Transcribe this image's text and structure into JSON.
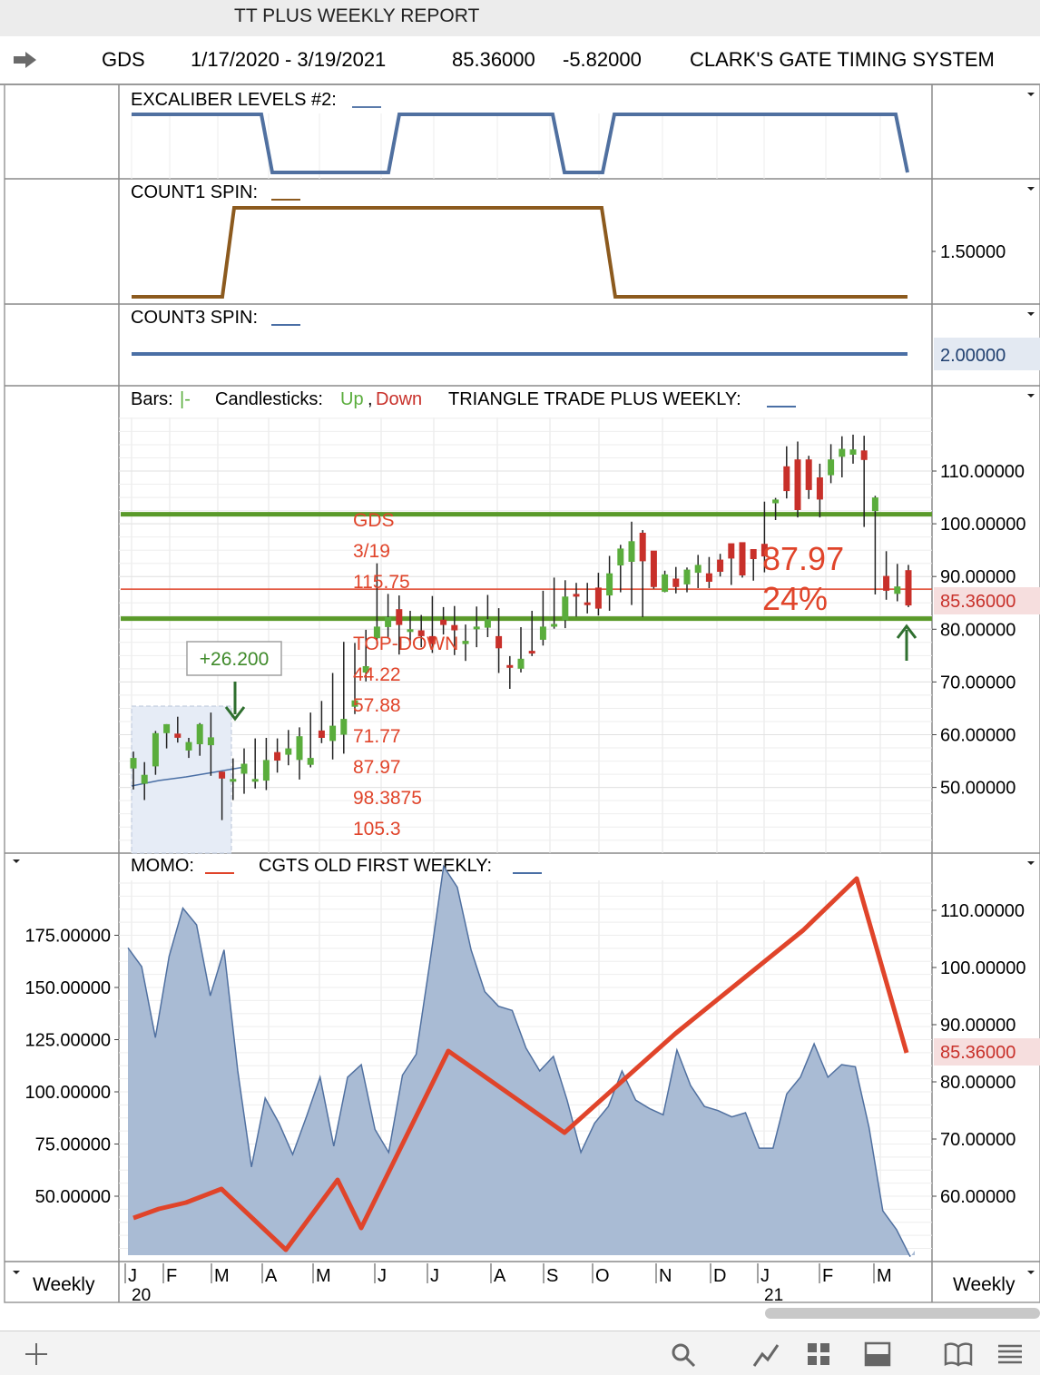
{
  "window": {
    "title": "TT PLUS WEEKLY REPORT"
  },
  "header": {
    "symbol": "GDS",
    "date_range": "1/17/2020 - 3/19/2021",
    "last_price": "85.36000",
    "change": "-5.82000",
    "system_name": "CLARK'S GATE TIMING SYSTEM"
  },
  "panes": {
    "excaliber": {
      "label": "EXCALIBER LEVELS #2:",
      "color": "#5b7bab"
    },
    "count1": {
      "label": "COUNT1 SPIN:",
      "axis_label": "1.50000",
      "color": "#8c5a1e"
    },
    "count3": {
      "label": "COUNT3 SPIN:",
      "axis_label": "2.00000",
      "color": "#4a6fa5"
    },
    "price": {
      "legend_bars": "Bars:",
      "legend_bars_glyph": "|-",
      "legend_candles": "Candlesticks:",
      "legend_up": "Up",
      "legend_comma": ",",
      "legend_down": "Down",
      "indicator_label": "TRIANGLE TRADE PLUS WEEKLY:",
      "last_price_label": "85.36000",
      "gain_label": "+26.200",
      "big_value": "87.97",
      "big_percent": "24%",
      "annotation_lines": [
        "GDS",
        "3/19",
        "115.75"
      ],
      "topdown_title": "TOP-DOWN",
      "topdown_levels": [
        "44.22",
        "57.88",
        "71.77",
        "87.97",
        "98.3875",
        "105.3"
      ]
    },
    "momo": {
      "label": "MOMO:",
      "indicator_label": "CGTS OLD FIRST WEEKLY:",
      "last_price_label": "85.36000"
    }
  },
  "footer": {
    "left_label": "Weekly",
    "right_label": "Weekly"
  },
  "x_axis": {
    "months": [
      "J",
      "F",
      "M",
      "A",
      "M",
      "J",
      "J",
      "A",
      "S",
      "O",
      "N",
      "D",
      "J",
      "F",
      "M"
    ],
    "year_labels": [
      "20",
      "21"
    ]
  },
  "colors": {
    "up": "#5aad3c",
    "down": "#c8302a",
    "support_lines": "#5a9a2a",
    "price_line": "#e0442a",
    "annotation": "#e0442a",
    "momo_fill": "#a9bbd4",
    "momo_line": "#5070a0"
  },
  "chart_data": [
    {
      "type": "line",
      "title": "EXCALIBER LEVELS #2",
      "x": [
        0,
        5,
        6,
        10,
        11,
        17,
        18,
        19,
        20,
        30,
        31
      ],
      "values": [
        1,
        1,
        0,
        0,
        1,
        1,
        0,
        0,
        1,
        1,
        0
      ]
    },
    {
      "type": "line",
      "title": "COUNT1 SPIN",
      "x": [
        0,
        3,
        4,
        19,
        20,
        31
      ],
      "values": [
        0,
        0,
        1,
        1,
        0,
        0
      ]
    },
    {
      "type": "line",
      "title": "COUNT3 SPIN",
      "x": [
        0,
        31
      ],
      "values": [
        2,
        2
      ]
    },
    {
      "type": "candlestick",
      "title": "TRIANGLE TRADE PLUS WEEKLY",
      "ylim": [
        38,
        122
      ],
      "yticks": [
        50,
        60,
        70,
        80,
        90,
        100,
        110
      ],
      "horizontal_lines": [
        {
          "value": 101.8,
          "label": "green"
        },
        {
          "value": 82,
          "label": "green"
        },
        {
          "value": 87.6,
          "label": "red"
        }
      ],
      "candles": [
        [
          53.6,
          55.6,
          50.7,
          49.6,
          56.8
        ],
        [
          50.7,
          52.4,
          49.3,
          47.6,
          54.8
        ],
        [
          54.0,
          60.3,
          53.4,
          52.4,
          60.7
        ],
        [
          60.3,
          62.0,
          59.6,
          57.4,
          62.0
        ],
        [
          60.2,
          59.4,
          59.6,
          58.5,
          63.4
        ],
        [
          57.0,
          58.6,
          56.9,
          55.6,
          59.4
        ],
        [
          58.2,
          62.0,
          58.1,
          56.0,
          62.2
        ],
        [
          58.0,
          59.5,
          54.8,
          52.2,
          64.2
        ],
        [
          53.0,
          51.7,
          49.3,
          43.8,
          53.0
        ],
        [
          51.5,
          51.6,
          52.1,
          47.6,
          55.5
        ],
        [
          52.6,
          54.5,
          51.1,
          48.8,
          57.4
        ],
        [
          51.4,
          51.6,
          51.4,
          49.8,
          59.3
        ],
        [
          51.3,
          55.2,
          51.1,
          49.5,
          59.4
        ],
        [
          56.7,
          55.1,
          57.2,
          52.8,
          59.3
        ],
        [
          56.2,
          57.4,
          55.1,
          54.2,
          60.9
        ],
        [
          55.2,
          59.7,
          52.7,
          51.5,
          61.4
        ],
        [
          54.3,
          55.6,
          60.3,
          53.8,
          64.2
        ],
        [
          60.8,
          59.4,
          62.1,
          58.4,
          66.4
        ],
        [
          58.8,
          61.7,
          56.7,
          55.3,
          71.7
        ],
        [
          60.0,
          63.0,
          57.9,
          56.4,
          77.6
        ],
        [
          65.3,
          66.5,
          71.5,
          63.9,
          77.4
        ],
        [
          71.8,
          73.0,
          76.9,
          70.1,
          79.9
        ],
        [
          78.3,
          80.5,
          81.6,
          77.2,
          92.5
        ],
        [
          80.4,
          82.3,
          80.2,
          78.5,
          86.7
        ],
        [
          83.8,
          80.8,
          77.8,
          75.2,
          86.4
        ],
        [
          79.9,
          80.0,
          80.7,
          77.1,
          83.5
        ],
        [
          79.8,
          78.7,
          81.0,
          76.6,
          82.7
        ],
        [
          78.7,
          77.2,
          81.9,
          75.5,
          86.3
        ],
        [
          81.8,
          80.8,
          80.6,
          79.0,
          84.2
        ],
        [
          80.8,
          79.8,
          77.8,
          75.1,
          84.4
        ],
        [
          77.2,
          77.8,
          79.9,
          74.0,
          80.9
        ],
        [
          80.4,
          80.5,
          79.4,
          76.6,
          84.3
        ],
        [
          80.3,
          81.9,
          81.5,
          78.5,
          86.5
        ],
        [
          78.7,
          76.4,
          73.4,
          71.7,
          84.0
        ],
        [
          73.2,
          72.9,
          70.2,
          68.7,
          74.9
        ],
        [
          72.5,
          74.4,
          75.4,
          71.8,
          80.4
        ],
        [
          75.9,
          75.4,
          77.4,
          74.9,
          83.5
        ],
        [
          78.0,
          80.5,
          81.5,
          76.9,
          87.3
        ],
        [
          80.6,
          81.0,
          82.6,
          80.1,
          89.8
        ],
        [
          81.7,
          86.2,
          87.8,
          80.2,
          89.3
        ],
        [
          86.7,
          86.3,
          84.2,
          82.4,
          88.8
        ],
        [
          85.1,
          84.9,
          87.0,
          83.0,
          88.8
        ],
        [
          87.9,
          83.9,
          85.8,
          82.6,
          90.7
        ],
        [
          86.4,
          90.6,
          86.0,
          83.5,
          93.9
        ],
        [
          92.1,
          95.3,
          95.5,
          87.0,
          96.0
        ],
        [
          92.8,
          96.7,
          99.8,
          84.6,
          100.4
        ],
        [
          98.3,
          92.9,
          88.2,
          82.3,
          98.8
        ],
        [
          94.9,
          88.0,
          87.1,
          87.7,
          94.1
        ],
        [
          87.1,
          90.4,
          88.2,
          87.0,
          91.1
        ],
        [
          89.6,
          88.0,
          90.1,
          86.8,
          91.8
        ],
        [
          88.5,
          91.3,
          90.0,
          87.0,
          91.7
        ],
        [
          90.7,
          92.2,
          90.6,
          87.8,
          94.1
        ],
        [
          90.6,
          89.0,
          90.5,
          87.8,
          93.7
        ],
        [
          93.2,
          90.9,
          93.5,
          90.0,
          94.3
        ],
        [
          96.3,
          93.4,
          90.7,
          88.4,
          94.8
        ],
        [
          96.5,
          90.2,
          91.6,
          89.8,
          93.5
        ],
        [
          95.2,
          93.3,
          90.8,
          89.2,
          93.3
        ],
        [
          96.2,
          93.8,
          97.3,
          90.8,
          104.2
        ],
        [
          103.9,
          104.6,
          104.3,
          100.7,
          104.9
        ],
        [
          110.9,
          106.2,
          110.6,
          104.8,
          114.7
        ],
        [
          112.2,
          102.6,
          110.1,
          101.2,
          115.6
        ],
        [
          112.2,
          106.4,
          106.1,
          104.7,
          112.9
        ],
        [
          108.8,
          104.6,
          108.6,
          101.2,
          111.4
        ],
        [
          109.2,
          112.2,
          110.8,
          107.7,
          115.1
        ],
        [
          112.7,
          114.2,
          113.1,
          108.8,
          116.6
        ],
        [
          113.1,
          114.1,
          114.6,
          111.4,
          116.9
        ],
        [
          113.9,
          112.1,
          101.4,
          99.4,
          116.7
        ],
        [
          102.4,
          105.0,
          89.4,
          86.6,
          105.3
        ],
        [
          90.1,
          87.3,
          86.6,
          85.6,
          94.8
        ],
        [
          86.7,
          88.1,
          85.4,
          85.3,
          92.4
        ],
        [
          91.2,
          84.5,
          85.4,
          84.2,
          92.2
        ]
      ],
      "candle_fields": [
        "open",
        "close",
        "body_low",
        "low",
        "high"
      ]
    },
    {
      "type": "area",
      "title": "MOMO",
      "ylim": [
        20,
        210
      ],
      "yticks": [
        50,
        75,
        100,
        125,
        150,
        175
      ],
      "values": [
        169,
        160,
        126,
        165,
        188,
        180,
        146,
        168,
        110,
        64,
        97,
        85,
        70,
        88,
        107,
        74,
        107,
        113,
        82,
        71,
        108,
        118,
        162,
        208,
        198,
        168,
        148,
        141,
        139,
        121,
        110,
        117,
        96,
        71,
        85,
        93,
        110,
        96,
        92,
        89,
        120,
        103,
        93,
        91,
        88,
        90,
        73,
        73,
        99,
        107,
        123,
        107,
        113,
        112,
        83,
        43,
        34,
        21
      ],
      "secondary_axis": {
        "label": "CGTS OLD FIRST WEEKLY",
        "ylim": [
          46,
          118
        ],
        "yticks": [
          60,
          70,
          80,
          90,
          100,
          110
        ],
        "x": [
          0,
          8,
          13,
          16,
          20,
          25,
          30,
          37,
          42,
          49,
          55,
          57
        ],
        "values": [
          57,
          59,
          61,
          54,
          63,
          57,
          84,
          71,
          78,
          84,
          102,
          85
        ]
      }
    }
  ]
}
